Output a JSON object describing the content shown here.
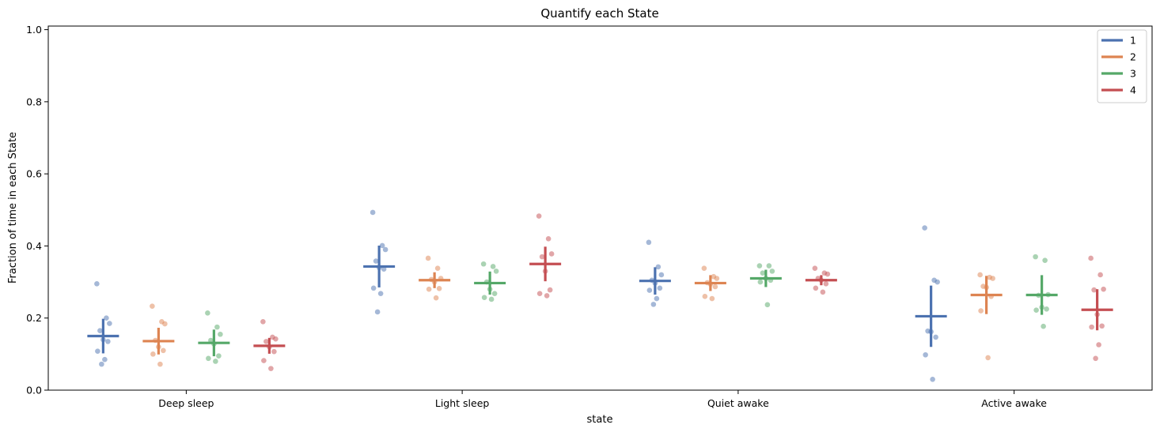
{
  "chart_data": {
    "type": "scatter",
    "title": "Quantify each State",
    "xlabel": "state",
    "ylabel": "Fraction of time in each State",
    "ylim": [
      0,
      1.01
    ],
    "yticks": [
      0.0,
      0.2,
      0.4,
      0.6,
      0.8,
      1.0
    ],
    "ytick_labels": [
      "0.0",
      "0.2",
      "0.4",
      "0.6",
      "0.8",
      "1.0"
    ],
    "categories": [
      "Deep sleep",
      "Light sleep",
      "Quiet awake",
      "Active awake"
    ],
    "legend_position": "top-right",
    "grid": false,
    "series": [
      {
        "name": "1",
        "color": "#4c72b0",
        "means": [
          0.15,
          0.343,
          0.303,
          0.205
        ],
        "errors": [
          0.048,
          0.058,
          0.038,
          0.085
        ],
        "points": [
          [
            0.295,
            0.2,
            0.185,
            0.165,
            0.14,
            0.135,
            0.108,
            0.085,
            0.072
          ],
          [
            0.493,
            0.401,
            0.39,
            0.358,
            0.34,
            0.336,
            0.283,
            0.268,
            0.217
          ],
          [
            0.41,
            0.342,
            0.32,
            0.305,
            0.297,
            0.283,
            0.277,
            0.254,
            0.238
          ],
          [
            0.45,
            0.305,
            0.3,
            0.164,
            0.162,
            0.147,
            0.098,
            0.03
          ]
        ]
      },
      {
        "name": "2",
        "color": "#dd8452",
        "means": [
          0.136,
          0.305,
          0.297,
          0.264
        ],
        "errors": [
          0.037,
          0.022,
          0.022,
          0.053
        ],
        "points": [
          [
            0.233,
            0.19,
            0.184,
            0.138,
            0.12,
            0.11,
            0.1,
            0.072
          ],
          [
            0.366,
            0.338,
            0.31,
            0.307,
            0.3,
            0.282,
            0.28,
            0.256
          ],
          [
            0.338,
            0.315,
            0.31,
            0.298,
            0.294,
            0.287,
            0.26,
            0.254
          ],
          [
            0.32,
            0.313,
            0.31,
            0.288,
            0.285,
            0.26,
            0.22,
            0.09
          ]
        ]
      },
      {
        "name": "3",
        "color": "#55a868",
        "means": [
          0.131,
          0.297,
          0.31,
          0.264
        ],
        "errors": [
          0.037,
          0.032,
          0.024,
          0.055
        ],
        "points": [
          [
            0.214,
            0.175,
            0.155,
            0.138,
            0.128,
            0.095,
            0.088,
            0.08
          ],
          [
            0.35,
            0.343,
            0.33,
            0.3,
            0.28,
            0.268,
            0.257,
            0.252
          ],
          [
            0.345,
            0.345,
            0.33,
            0.325,
            0.31,
            0.305,
            0.3,
            0.237
          ],
          [
            0.37,
            0.36,
            0.265,
            0.263,
            0.23,
            0.225,
            0.222,
            0.177
          ]
        ]
      },
      {
        "name": "4",
        "color": "#c44e52",
        "means": [
          0.123,
          0.35,
          0.305,
          0.223
        ],
        "errors": [
          0.022,
          0.048,
          0.014,
          0.057
        ],
        "points": [
          [
            0.19,
            0.147,
            0.142,
            0.135,
            0.12,
            0.107,
            0.082,
            0.06
          ],
          [
            0.483,
            0.42,
            0.378,
            0.37,
            0.33,
            0.278,
            0.268,
            0.262
          ],
          [
            0.338,
            0.325,
            0.322,
            0.31,
            0.305,
            0.295,
            0.283,
            0.272
          ],
          [
            0.366,
            0.32,
            0.28,
            0.278,
            0.21,
            0.178,
            0.175,
            0.126,
            0.088
          ]
        ]
      }
    ]
  }
}
